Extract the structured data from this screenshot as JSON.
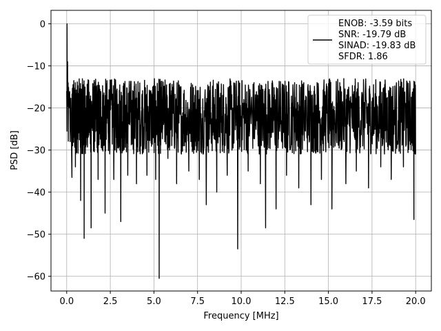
{
  "chart_data": {
    "type": "line",
    "title": "",
    "xlabel": "Frequency [MHz]",
    "ylabel": "PSD [dB]",
    "xlim": [
      -0.9,
      20.9
    ],
    "ylim": [
      -63.5,
      3.2
    ],
    "x_ticks": [
      0.0,
      2.5,
      5.0,
      7.5,
      10.0,
      12.5,
      15.0,
      17.5,
      20.0
    ],
    "x_tick_labels": [
      "0.0",
      "2.5",
      "5.0",
      "7.5",
      "10.0",
      "12.5",
      "15.0",
      "17.5",
      "20.0"
    ],
    "y_ticks": [
      0,
      -10,
      -20,
      -30,
      -40,
      -50,
      -60
    ],
    "y_tick_labels": [
      "0",
      "−10",
      "−20",
      "−30",
      "−40",
      "−50",
      "−60"
    ],
    "grid": true,
    "legend_position": "top-right",
    "series": [
      {
        "name": "",
        "color": "#000000",
        "description": "noisy power spectral density: peak 0 dB near 0 MHz, noise floor fluctuating roughly between -10 and -37 dB across 0-20 MHz, deep notches to about -60.5 dB at 5.3 MHz",
        "points": [
          [
            0.0,
            -16
          ],
          [
            0.02,
            0.0
          ],
          [
            0.05,
            -9
          ],
          [
            0.08,
            -14
          ],
          [
            0.12,
            -20
          ],
          [
            0.2,
            -28
          ],
          [
            0.3,
            -36.5
          ],
          [
            0.4,
            -25
          ],
          [
            0.5,
            -34
          ],
          [
            0.6,
            -18
          ],
          [
            0.8,
            -42
          ],
          [
            0.95,
            -22
          ],
          [
            1.0,
            -51
          ],
          [
            1.2,
            -26
          ],
          [
            1.4,
            -48.5
          ],
          [
            1.6,
            -20
          ],
          [
            1.8,
            -37
          ],
          [
            2.0,
            -25
          ],
          [
            2.2,
            -45
          ],
          [
            2.4,
            -22
          ],
          [
            2.7,
            -37
          ],
          [
            2.9,
            -20
          ],
          [
            3.1,
            -47
          ],
          [
            3.3,
            -24
          ],
          [
            3.5,
            -36
          ],
          [
            3.8,
            -20
          ],
          [
            4.0,
            -38
          ],
          [
            4.3,
            -23
          ],
          [
            4.6,
            -36
          ],
          [
            4.9,
            -20
          ],
          [
            5.1,
            -37
          ],
          [
            5.3,
            -60.5
          ],
          [
            5.5,
            -25
          ],
          [
            5.8,
            -32
          ],
          [
            6.0,
            -18
          ],
          [
            6.3,
            -38
          ],
          [
            6.6,
            -22
          ],
          [
            7.0,
            -35
          ],
          [
            7.3,
            -20
          ],
          [
            7.6,
            -37
          ],
          [
            8.0,
            -43
          ],
          [
            8.3,
            -24
          ],
          [
            8.6,
            -40
          ],
          [
            8.9,
            -22
          ],
          [
            9.2,
            -36
          ],
          [
            9.5,
            -24
          ],
          [
            9.8,
            -53.5
          ],
          [
            10.1,
            -20
          ],
          [
            10.4,
            -35
          ],
          [
            10.8,
            -24
          ],
          [
            11.1,
            -38
          ],
          [
            11.4,
            -48.5
          ],
          [
            11.7,
            -20
          ],
          [
            12.0,
            -44
          ],
          [
            12.3,
            -25
          ],
          [
            12.6,
            -36
          ],
          [
            13.0,
            -22
          ],
          [
            13.3,
            -39
          ],
          [
            13.6,
            -24
          ],
          [
            14.0,
            -43
          ],
          [
            14.3,
            -20
          ],
          [
            14.6,
            -37
          ],
          [
            15.0,
            -22
          ],
          [
            15.2,
            -44
          ],
          [
            15.6,
            -24
          ],
          [
            16.0,
            -38
          ],
          [
            16.3,
            -20
          ],
          [
            16.6,
            -35
          ],
          [
            17.0,
            -22
          ],
          [
            17.3,
            -39
          ],
          [
            17.6,
            -24
          ],
          [
            18.0,
            -34
          ],
          [
            18.3,
            -20
          ],
          [
            18.6,
            -37
          ],
          [
            19.0,
            -23
          ],
          [
            19.3,
            -34
          ],
          [
            19.6,
            -22
          ],
          [
            19.9,
            -46.5
          ],
          [
            20.0,
            -30
          ]
        ]
      }
    ],
    "legend": {
      "lines": [
        "ENOB: -3.59 bits",
        "SNR: -19.79 dB",
        "SINAD: -19.83 dB",
        "SFDR: 1.86"
      ]
    }
  }
}
